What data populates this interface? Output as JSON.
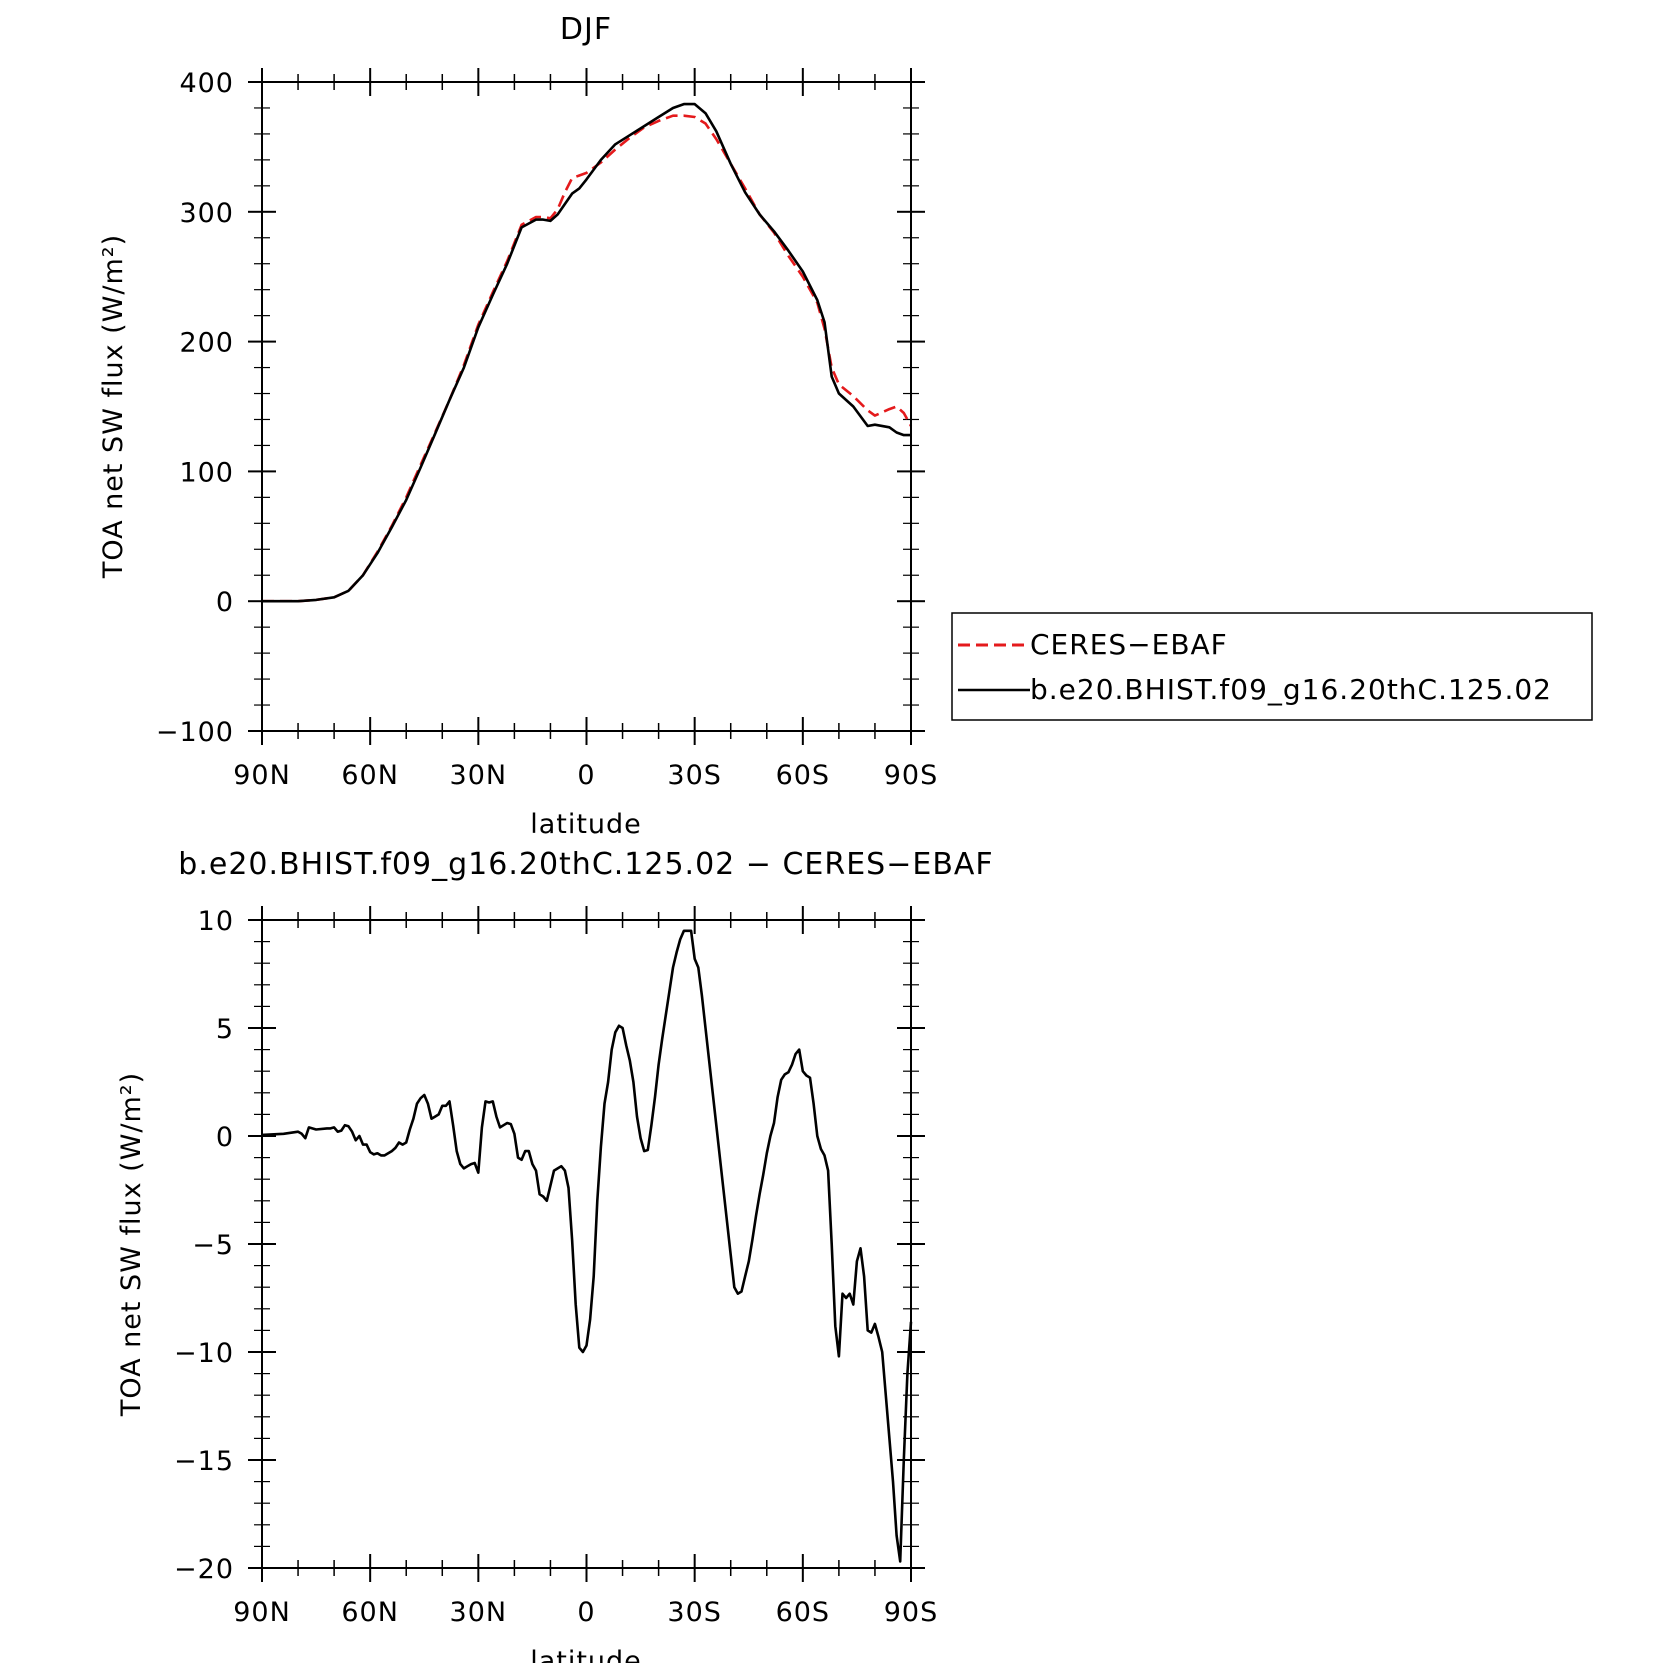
{
  "chart_data": [
    {
      "type": "line",
      "title": "DJF",
      "xlabel": "latitude",
      "ylabel": "TOA net SW flux (W/m²)",
      "xlim": [
        90,
        -90
      ],
      "ylim": [
        -100,
        400
      ],
      "x_ticks": [
        {
          "value": 90,
          "label": "90N"
        },
        {
          "value": 60,
          "label": "60N"
        },
        {
          "value": 30,
          "label": "30N"
        },
        {
          "value": 0,
          "label": "0"
        },
        {
          "value": -30,
          "label": "30S"
        },
        {
          "value": -60,
          "label": "60S"
        },
        {
          "value": -90,
          "label": "90S"
        }
      ],
      "y_ticks": [
        {
          "value": 400,
          "label": "400"
        },
        {
          "value": 300,
          "label": "300"
        },
        {
          "value": 200,
          "label": "200"
        },
        {
          "value": 100,
          "label": "100"
        },
        {
          "value": 0,
          "label": "0"
        },
        {
          "value": -100,
          "label": "−100"
        }
      ],
      "legend": "right",
      "series": [
        {
          "name": "CERES−EBAF",
          "color": "#e41a1c",
          "dash": "dashed",
          "x": [
            90,
            80,
            75,
            70,
            66,
            62,
            58,
            54,
            50,
            46,
            42,
            38,
            34,
            30,
            26,
            22,
            18,
            14,
            12,
            10,
            8,
            6,
            4,
            2,
            0,
            -4,
            -8,
            -12,
            -16,
            -20,
            -24,
            -27,
            -30,
            -33,
            -36,
            -40,
            -44,
            -48,
            -52,
            -56,
            -60,
            -64,
            -66,
            -68,
            -70,
            -74,
            -78,
            -80,
            -84,
            -86,
            -88,
            -90
          ],
          "y": [
            0,
            0,
            1,
            3,
            8,
            20,
            38,
            58,
            80,
            105,
            130,
            155,
            182,
            213,
            238,
            262,
            290,
            296,
            296,
            295,
            302,
            315,
            326,
            328,
            330,
            338,
            348,
            357,
            365,
            370,
            374,
            374,
            373,
            368,
            356,
            337,
            318,
            298,
            284,
            266,
            250,
            230,
            210,
            180,
            167,
            158,
            147,
            143,
            148,
            150,
            145,
            135
          ]
        },
        {
          "name": "b.e20.BHIST.f09_g16.20thC.125.02",
          "color": "#000000",
          "dash": "solid",
          "x": [
            90,
            80,
            75,
            70,
            66,
            62,
            58,
            54,
            50,
            46,
            42,
            38,
            34,
            30,
            26,
            22,
            18,
            14,
            12,
            10,
            8,
            6,
            4,
            2,
            0,
            -4,
            -8,
            -12,
            -16,
            -20,
            -24,
            -27,
            -30,
            -33,
            -36,
            -40,
            -44,
            -48,
            -52,
            -56,
            -60,
            -64,
            -66,
            -68,
            -70,
            -74,
            -78,
            -80,
            -84,
            -86,
            -88,
            -90
          ],
          "y": [
            0,
            0,
            1,
            3,
            8,
            20,
            37,
            57,
            78,
            103,
            129,
            155,
            180,
            211,
            236,
            260,
            288,
            294,
            294,
            293,
            298,
            306,
            314,
            318,
            325,
            340,
            352,
            359,
            366,
            373,
            380,
            383,
            383,
            376,
            362,
            337,
            315,
            298,
            285,
            270,
            254,
            232,
            215,
            173,
            160,
            150,
            135,
            136,
            134,
            130,
            128,
            128
          ]
        }
      ]
    },
    {
      "type": "line",
      "title": "b.e20.BHIST.f09_g16.20thC.125.02 − CERES−EBAF",
      "xlabel": "latitude",
      "ylabel": "TOA net SW flux (W/m²)",
      "xlim": [
        90,
        -90
      ],
      "ylim": [
        -20,
        10
      ],
      "x_ticks": [
        {
          "value": 90,
          "label": "90N"
        },
        {
          "value": 60,
          "label": "60N"
        },
        {
          "value": 30,
          "label": "30N"
        },
        {
          "value": 0,
          "label": "0"
        },
        {
          "value": -30,
          "label": "30S"
        },
        {
          "value": -60,
          "label": "60S"
        },
        {
          "value": -90,
          "label": "90S"
        }
      ],
      "y_ticks": [
        {
          "value": 10,
          "label": "10"
        },
        {
          "value": 5,
          "label": "5"
        },
        {
          "value": 0,
          "label": "0"
        },
        {
          "value": -5,
          "label": "−5"
        },
        {
          "value": -10,
          "label": "−10"
        },
        {
          "value": -15,
          "label": "−15"
        },
        {
          "value": -20,
          "label": "−20"
        }
      ],
      "series": [
        {
          "color": "#000000",
          "dash": "solid",
          "x": [
            90,
            84,
            80,
            79,
            78,
            77,
            75,
            72,
            71,
            70,
            69,
            68,
            67,
            66,
            65,
            64,
            63,
            62,
            61,
            60,
            59,
            58,
            57,
            56,
            55,
            54,
            53,
            52,
            51,
            50,
            49,
            48,
            47,
            46,
            45,
            44,
            43,
            42,
            41,
            40,
            39,
            38,
            37,
            36,
            35,
            34,
            33,
            32,
            31,
            30,
            29,
            28,
            27,
            26,
            25,
            24,
            23,
            22,
            21,
            20,
            19,
            18,
            17,
            16,
            15,
            14,
            13,
            12,
            11,
            10,
            9,
            8,
            7,
            6,
            5,
            4,
            3,
            2,
            1,
            0,
            -1,
            -2,
            -3,
            -4,
            -5,
            -6,
            -7,
            -8,
            -9,
            -10,
            -11,
            -12,
            -13,
            -14,
            -15,
            -16,
            -17,
            -18,
            -19,
            -20,
            -21,
            -22,
            -23,
            -24,
            -25,
            -26,
            -27,
            -28,
            -29,
            -30,
            -31,
            -32,
            -33,
            -34,
            -35,
            -36,
            -37,
            -38,
            -39,
            -40,
            -41,
            -42,
            -43,
            -44,
            -45,
            -46,
            -47,
            -48,
            -49,
            -50,
            -51,
            -52,
            -53,
            -54,
            -55,
            -56,
            -57,
            -58,
            -59,
            -60,
            -61,
            -62,
            -63,
            -64,
            -65,
            -66,
            -67,
            -68,
            -69,
            -70,
            -71,
            -72,
            -73,
            -74,
            -75,
            -76,
            -77,
            -78,
            -79,
            -80,
            -81,
            -82,
            -83,
            -84,
            -85,
            -86,
            -87,
            -88,
            -89,
            -90
          ],
          "y": [
            0.05,
            0.1,
            0.2,
            0.1,
            -0.1,
            0.4,
            0.3,
            0.35,
            0.35,
            0.4,
            0.2,
            0.25,
            0.5,
            0.45,
            0.2,
            -0.2,
            0.0,
            -0.4,
            -0.4,
            -0.75,
            -0.85,
            -0.8,
            -0.9,
            -0.9,
            -0.8,
            -0.7,
            -0.55,
            -0.3,
            -0.4,
            -0.3,
            0.3,
            0.8,
            1.5,
            1.75,
            1.9,
            1.5,
            0.8,
            0.9,
            1.0,
            1.4,
            1.4,
            1.6,
            0.5,
            -0.7,
            -1.3,
            -1.5,
            -1.4,
            -1.3,
            -1.25,
            -1.7,
            0.4,
            1.6,
            1.55,
            1.6,
            0.9,
            0.4,
            0.5,
            0.6,
            0.55,
            0.1,
            -1.0,
            -1.1,
            -0.7,
            -0.7,
            -1.3,
            -1.6,
            -2.7,
            -2.8,
            -3.0,
            -2.3,
            -1.6,
            -1.5,
            -1.4,
            -1.6,
            -2.4,
            -4.8,
            -7.8,
            -9.8,
            -10.0,
            -9.7,
            -8.5,
            -6.5,
            -3.0,
            -0.5,
            1.5,
            2.5,
            4.0,
            4.8,
            5.1,
            5.0,
            4.2,
            3.5,
            2.5,
            0.9,
            -0.1,
            -0.7,
            -0.65,
            0.5,
            1.8,
            3.3,
            4.5,
            5.6,
            6.7,
            7.8,
            8.5,
            9.1,
            9.5,
            9.5,
            9.5,
            8.2,
            7.8,
            6.5,
            5.0,
            3.5,
            2.0,
            0.5,
            -1.0,
            -2.5,
            -4.0,
            -5.5,
            -7.0,
            -7.3,
            -7.2,
            -6.5,
            -5.8,
            -4.8,
            -3.7,
            -2.7,
            -1.8,
            -0.8,
            0.0,
            0.6,
            1.8,
            2.6,
            2.85,
            2.95,
            3.3,
            3.8,
            4.0,
            3.0,
            2.8,
            2.7,
            1.5,
            0.0,
            -0.6,
            -0.9,
            -1.6,
            -5.0,
            -8.8,
            -10.2,
            -7.3,
            -7.5,
            -7.3,
            -7.8,
            -5.8,
            -5.2,
            -6.5,
            -9.0,
            -9.1,
            -8.7,
            -9.3,
            -10.0,
            -12.0,
            -14.0,
            -16.0,
            -18.5,
            -19.7,
            -15.0,
            -11.0,
            -8.6
          ]
        }
      ]
    }
  ]
}
